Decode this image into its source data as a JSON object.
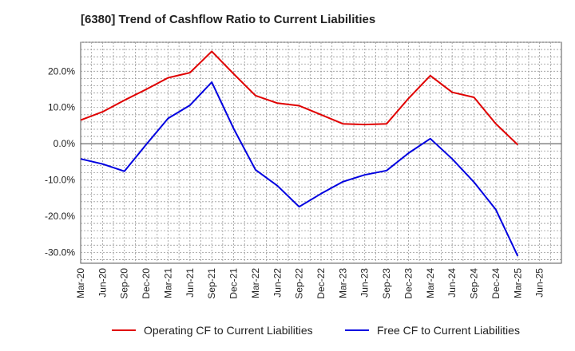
{
  "title": "[6380]  Trend of Cashflow Ratio to Current Liabilities",
  "chart_data": {
    "type": "line",
    "title": "[6380]  Trend of Cashflow Ratio to Current Liabilities",
    "x_tick_labels": [
      "Mar-20",
      "Jun-20",
      "Sep-20",
      "Dec-20",
      "Mar-21",
      "Jun-21",
      "Sep-21",
      "Dec-21",
      "Mar-22",
      "Jun-22",
      "Sep-22",
      "Dec-22",
      "Mar-23",
      "Jun-23",
      "Sep-23",
      "Dec-23",
      "Mar-24",
      "Jun-24",
      "Sep-24",
      "Dec-24",
      "Mar-25",
      "Jun-25"
    ],
    "y_tick_labels": [
      "20.0%",
      "10.0%",
      "0.0%",
      "-10.0%",
      "-20.0%",
      "-30.0%"
    ],
    "y_ticks": [
      20,
      10,
      0,
      -10,
      -20,
      -30
    ],
    "ylim": [
      -33,
      28
    ],
    "grid": true,
    "legend_position": "bottom",
    "series": [
      {
        "name": "Operating CF to Current Liabilities",
        "color": "#e00000",
        "values": [
          6.5,
          8.8,
          12.0,
          15.0,
          18.2,
          19.6,
          25.5,
          19.3,
          13.3,
          11.2,
          10.5,
          8.0,
          5.5,
          5.3,
          5.5,
          12.5,
          18.8,
          14.2,
          12.8,
          5.5,
          -0.3,
          null
        ]
      },
      {
        "name": "Free CF to Current Liabilities",
        "color": "#0000e0",
        "values": [
          -4.2,
          -5.6,
          -7.6,
          -0.2,
          7.0,
          10.6,
          17.0,
          4.2,
          -7.2,
          -11.6,
          -17.4,
          -13.8,
          -10.5,
          -8.6,
          -7.4,
          -2.6,
          1.4,
          -4.2,
          -10.6,
          -18.2,
          -31.0,
          null
        ]
      }
    ]
  }
}
